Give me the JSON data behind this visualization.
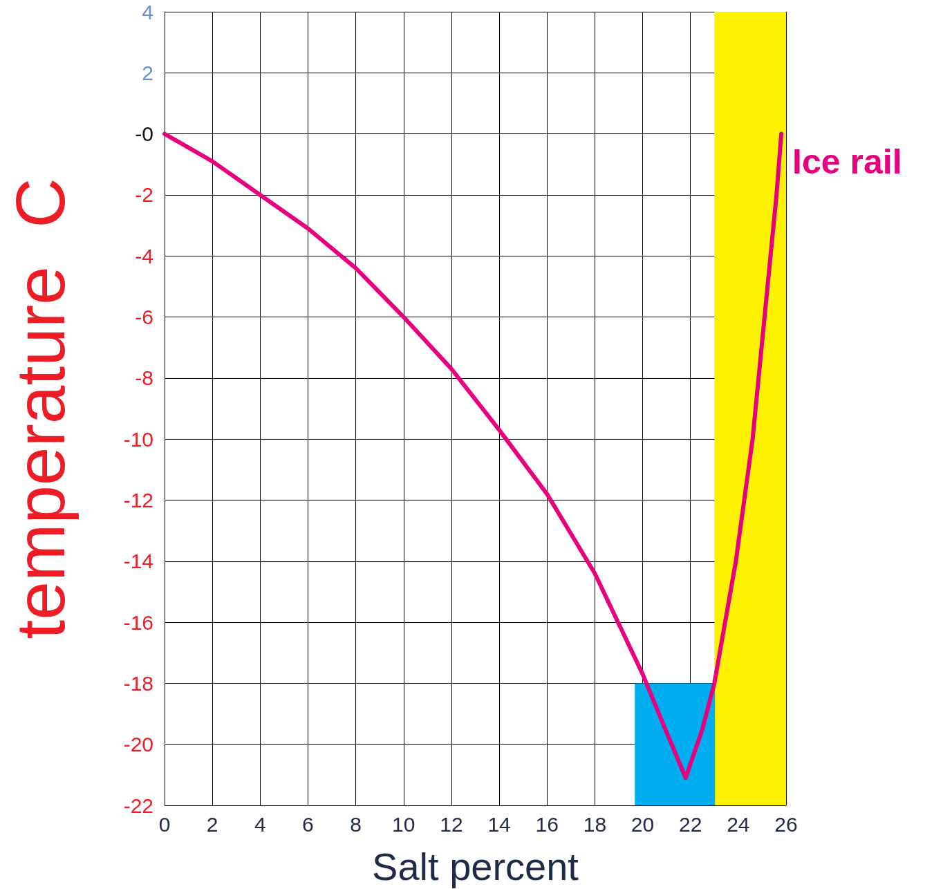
{
  "chart_data": {
    "type": "line",
    "xlabel": "Salt percent",
    "ylabel": "temperature  C",
    "xlim": [
      0,
      26
    ],
    "xticks": [
      0,
      2,
      4,
      6,
      8,
      10,
      12,
      14,
      16,
      18,
      20,
      22,
      24,
      26
    ],
    "ylim": [
      -22,
      4
    ],
    "yticks": [
      -22,
      -20,
      -18,
      -16,
      -14,
      -12,
      -10,
      -8,
      -6,
      -4,
      -2,
      {
        "value": 0,
        "label": "-0"
      },
      2,
      4
    ],
    "grid": true,
    "legend": false,
    "marker": "none",
    "line_style": "solid",
    "bands": [
      {
        "axis": "x",
        "from": 23,
        "to": 26,
        "color": "#fff200"
      }
    ],
    "series": [
      {
        "type": "bar",
        "color": "#00aeef",
        "x": [
          21.35
        ],
        "values": [
          4
        ],
        "base": [
          -22
        ]
      },
      {
        "name": "Ice rail",
        "color": "#e6007e",
        "x": [
          0,
          2,
          4,
          6,
          8,
          10,
          12,
          14,
          16,
          18,
          20,
          21,
          21.8,
          22.5,
          23,
          23.9,
          24.6,
          25.1,
          25.6,
          25.8
        ],
        "values": [
          0,
          -0.9,
          -2.0,
          -3.1,
          -4.4,
          -6.0,
          -7.7,
          -9.7,
          -11.8,
          -14.4,
          -17.7,
          -19.6,
          -21.1,
          -19.5,
          -18,
          -14,
          -10,
          -6,
          -2,
          0
        ]
      }
    ]
  }
}
